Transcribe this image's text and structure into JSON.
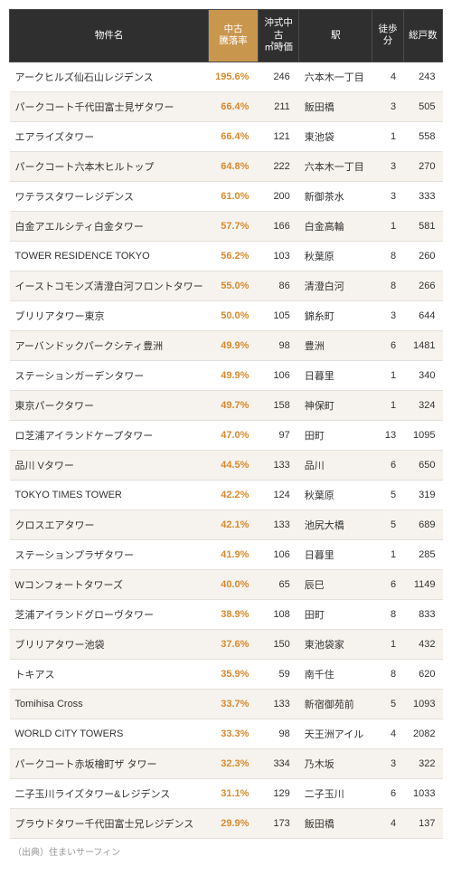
{
  "columns": [
    {
      "key": "name",
      "label": "物件名",
      "highlight": false
    },
    {
      "key": "rate",
      "label": "中古\n騰落率",
      "highlight": true
    },
    {
      "key": "price",
      "label": "沖式中古\n㎡時価",
      "highlight": false
    },
    {
      "key": "station",
      "label": "駅",
      "highlight": false
    },
    {
      "key": "walk",
      "label": "徒歩分",
      "highlight": false
    },
    {
      "key": "units",
      "label": "総戸数",
      "highlight": false
    }
  ],
  "rows": [
    {
      "name": "アークヒルズ仙石山レジデンス",
      "rate": "195.6%",
      "price": "246",
      "station": "六本木一丁目",
      "walk": "4",
      "units": "243"
    },
    {
      "name": "パークコート千代田富士見ザタワー",
      "rate": "66.4%",
      "price": "211",
      "station": "飯田橋",
      "walk": "3",
      "units": "505"
    },
    {
      "name": "エアライズタワー",
      "rate": "66.4%",
      "price": "121",
      "station": "東池袋",
      "walk": "1",
      "units": "558"
    },
    {
      "name": "パークコート六本木ヒルトップ",
      "rate": "64.8%",
      "price": "222",
      "station": "六本木一丁目",
      "walk": "3",
      "units": "270"
    },
    {
      "name": "ワテラスタワーレジデンス",
      "rate": "61.0%",
      "price": "200",
      "station": "新御茶水",
      "walk": "3",
      "units": "333"
    },
    {
      "name": "白金アエルシティ白金タワー",
      "rate": "57.7%",
      "price": "166",
      "station": "白金高輪",
      "walk": "1",
      "units": "581"
    },
    {
      "name": "TOWER RESIDENCE TOKYO",
      "rate": "56.2%",
      "price": "103",
      "station": "秋葉原",
      "walk": "8",
      "units": "260"
    },
    {
      "name": "イーストコモンズ清澄白河フロントタワー",
      "rate": "55.0%",
      "price": "86",
      "station": "清澄白河",
      "walk": "8",
      "units": "266"
    },
    {
      "name": "ブリリアタワー東京",
      "rate": "50.0%",
      "price": "105",
      "station": "錦糸町",
      "walk": "3",
      "units": "644"
    },
    {
      "name": "アーバンドックパークシティ豊洲",
      "rate": "49.9%",
      "price": "98",
      "station": "豊洲",
      "walk": "6",
      "units": "1481"
    },
    {
      "name": "ステーションガーデンタワー",
      "rate": "49.9%",
      "price": "106",
      "station": "日暮里",
      "walk": "1",
      "units": "340"
    },
    {
      "name": "東京パークタワー",
      "rate": "49.7%",
      "price": "158",
      "station": "神保町",
      "walk": "1",
      "units": "324"
    },
    {
      "name": "ロ芝浦アイランドケープタワー",
      "rate": "47.0%",
      "price": "97",
      "station": "田町",
      "walk": "13",
      "units": "1095"
    },
    {
      "name": "品川 Vタワー",
      "rate": "44.5%",
      "price": "133",
      "station": "品川",
      "walk": "6",
      "units": "650"
    },
    {
      "name": "TOKYO TIMES TOWER",
      "rate": "42.2%",
      "price": "124",
      "station": "秋葉原",
      "walk": "5",
      "units": "319"
    },
    {
      "name": "クロスエアタワー",
      "rate": "42.1%",
      "price": "133",
      "station": "池尻大橋",
      "walk": "5",
      "units": "689"
    },
    {
      "name": "ステーションプラザタワー",
      "rate": "41.9%",
      "price": "106",
      "station": "日暮里",
      "walk": "1",
      "units": "285"
    },
    {
      "name": "Wコンフォートタワーズ",
      "rate": "40.0%",
      "price": "65",
      "station": "辰巳",
      "walk": "6",
      "units": "1149"
    },
    {
      "name": "芝浦アイランドグローヴタワー",
      "rate": "38.9%",
      "price": "108",
      "station": "田町",
      "walk": "8",
      "units": "833"
    },
    {
      "name": "ブリリアタワー池袋",
      "rate": "37.6%",
      "price": "150",
      "station": "東池袋家",
      "walk": "1",
      "units": "432"
    },
    {
      "name": "トキアス",
      "rate": "35.9%",
      "price": "59",
      "station": "南千住",
      "walk": "8",
      "units": "620"
    },
    {
      "name": "Tomihisa Cross",
      "rate": "33.7%",
      "price": "133",
      "station": "新宿御苑前",
      "walk": "5",
      "units": "1093"
    },
    {
      "name": "WORLD CITY TOWERS",
      "rate": "33.3%",
      "price": "98",
      "station": "天王洲アイル",
      "walk": "4",
      "units": "2082"
    },
    {
      "name": "パークコート赤坂檜町ザ タワー",
      "rate": "32.3%",
      "price": "334",
      "station": "乃木坂",
      "walk": "3",
      "units": "322"
    },
    {
      "name": "二子玉川ライズタワー&レジデンス",
      "rate": "31.1%",
      "price": "129",
      "station": "二子玉川",
      "walk": "6",
      "units": "1033"
    },
    {
      "name": "プラウドタワー千代田富士兄レジデンス",
      "rate": "29.9%",
      "price": "173",
      "station": "飯田橋",
      "walk": "4",
      "units": "137"
    }
  ],
  "source": "（出典）住まいサーフィン"
}
